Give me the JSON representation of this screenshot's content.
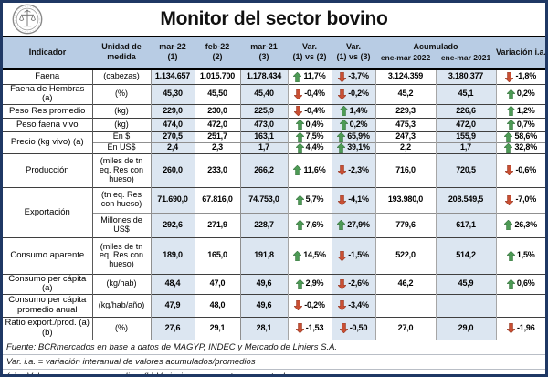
{
  "title": "Monitor del sector bovino",
  "icons": {
    "logo": "bcr-seal",
    "up_arrow": "block-arrow-up",
    "down_arrow": "block-arrow-down"
  },
  "colors": {
    "frame_border": "#1f3864",
    "header_bg": "#b8cce4",
    "stripe_bg": "#dce6f1",
    "up_arrow": "#4d9a55",
    "up_arrow_dark": "#35713c",
    "down_arrow": "#c94f33",
    "down_arrow_dark": "#8f3520"
  },
  "header": {
    "indicator": "Indicador",
    "unit": "Unidad de medida",
    "periods": [
      {
        "label": "mar-22",
        "sub": "(1)"
      },
      {
        "label": "feb-22",
        "sub": "(2)"
      },
      {
        "label": "mar-21",
        "sub": "(3)"
      }
    ],
    "variations": [
      {
        "label": "Var.",
        "sub": "(1) vs (2)"
      },
      {
        "label": "Var.",
        "sub": "(1) vs (3)"
      }
    ],
    "accumulated": {
      "label": "Acumulado",
      "subs": [
        "ene-mar 2022",
        "ene-mar 2021"
      ]
    },
    "interannual": "Variación i.a."
  },
  "rows": [
    {
      "indicator": "Faena",
      "unit": "(cabezas)",
      "values": [
        "1.134.657",
        "1.015.700",
        "1.178.434"
      ],
      "var_1_2": {
        "dir": "up",
        "value": "11,7%"
      },
      "var_1_3": {
        "dir": "down",
        "value": "-3,7%"
      },
      "acum_2022": "3.124.359",
      "acum_2021": "3.180.377",
      "var_ia": {
        "dir": "down",
        "value": "-1,8%"
      }
    },
    {
      "indicator": "Faena de Hembras (a)",
      "unit": "(%)",
      "values": [
        "45,30",
        "45,50",
        "45,40"
      ],
      "var_1_2": {
        "dir": "down",
        "value": "-0,4%"
      },
      "var_1_3": {
        "dir": "down",
        "value": "-0,2%"
      },
      "acum_2022": "45,2",
      "acum_2021": "45,1",
      "var_ia": {
        "dir": "up",
        "value": "0,2%"
      }
    },
    {
      "indicator": "Peso Res promedio",
      "unit": "(kg)",
      "values": [
        "229,0",
        "230,0",
        "225,9"
      ],
      "var_1_2": {
        "dir": "down",
        "value": "-0,4%"
      },
      "var_1_3": {
        "dir": "up",
        "value": "1,4%"
      },
      "acum_2022": "229,3",
      "acum_2021": "226,6",
      "var_ia": {
        "dir": "up",
        "value": "1,2%"
      }
    },
    {
      "indicator": "Peso faena vivo",
      "unit": "(kg)",
      "values": [
        "474,0",
        "472,0",
        "473,0"
      ],
      "var_1_2": {
        "dir": "up",
        "value": "0,4%"
      },
      "var_1_3": {
        "dir": "up",
        "value": "0,2%"
      },
      "acum_2022": "475,3",
      "acum_2021": "472,0",
      "var_ia": {
        "dir": "up",
        "value": "0,7%"
      }
    },
    {
      "indicator": "Precio (kg vivo) (a)",
      "unit": "En $",
      "values": [
        "270,5",
        "251,7",
        "163,1"
      ],
      "var_1_2": {
        "dir": "up",
        "value": "7,5%"
      },
      "var_1_3": {
        "dir": "up",
        "value": "65,9%"
      },
      "acum_2022": "247,3",
      "acum_2021": "155,9",
      "var_ia": {
        "dir": "up",
        "value": "58,6%"
      }
    },
    {
      "indicator": null,
      "unit": "En US$",
      "values": [
        "2,4",
        "2,3",
        "1,7"
      ],
      "var_1_2": {
        "dir": "up",
        "value": "4,4%"
      },
      "var_1_3": {
        "dir": "up",
        "value": "39,1%"
      },
      "acum_2022": "2,2",
      "acum_2021": "1,7",
      "var_ia": {
        "dir": "up",
        "value": "32,8%"
      }
    },
    {
      "indicator": "Producción",
      "unit": "(miles de tn eq. Res con hueso)",
      "values": [
        "260,0",
        "233,0",
        "266,2"
      ],
      "var_1_2": {
        "dir": "up",
        "value": "11,6%"
      },
      "var_1_3": {
        "dir": "down",
        "value": "-2,3%"
      },
      "acum_2022": "716,0",
      "acum_2021": "720,5",
      "var_ia": {
        "dir": "down",
        "value": "-0,6%"
      }
    },
    {
      "indicator": "Exportación",
      "unit": "(tn eq. Res con hueso)",
      "values": [
        "71.690,0",
        "67.816,0",
        "74.753,0"
      ],
      "var_1_2": {
        "dir": "up",
        "value": "5,7%"
      },
      "var_1_3": {
        "dir": "down",
        "value": "-4,1%"
      },
      "acum_2022": "193.980,0",
      "acum_2021": "208.549,5",
      "var_ia": {
        "dir": "down",
        "value": "-7,0%"
      }
    },
    {
      "indicator": null,
      "unit": "Millones de US$",
      "values": [
        "292,6",
        "271,9",
        "228,7"
      ],
      "var_1_2": {
        "dir": "up",
        "value": "7,6%"
      },
      "var_1_3": {
        "dir": "up",
        "value": "27,9%"
      },
      "acum_2022": "779,6",
      "acum_2021": "617,1",
      "var_ia": {
        "dir": "up",
        "value": "26,3%"
      }
    },
    {
      "indicator": "Consumo aparente",
      "unit": "(miles de tn eq. Res con hueso)",
      "values": [
        "189,0",
        "165,0",
        "191,8"
      ],
      "var_1_2": {
        "dir": "up",
        "value": "14,5%"
      },
      "var_1_3": {
        "dir": "down",
        "value": "-1,5%"
      },
      "acum_2022": "522,0",
      "acum_2021": "514,2",
      "var_ia": {
        "dir": "up",
        "value": "1,5%"
      }
    },
    {
      "indicator": "Consumo per cápita (a)",
      "unit": "(kg/hab)",
      "values": [
        "48,4",
        "47,0",
        "49,6"
      ],
      "var_1_2": {
        "dir": "up",
        "value": "2,9%"
      },
      "var_1_3": {
        "dir": "down",
        "value": "-2,6%"
      },
      "acum_2022": "46,2",
      "acum_2021": "45,9",
      "var_ia": {
        "dir": "up",
        "value": "0,6%"
      }
    },
    {
      "indicator": "Consumo per cápita promedio anual",
      "unit": "(kg/hab/año)",
      "values": [
        "47,9",
        "48,0",
        "49,6"
      ],
      "var_1_2": {
        "dir": "down",
        "value": "-0,2%"
      },
      "var_1_3": {
        "dir": "down",
        "value": "-3,4%"
      },
      "acum_2022": "",
      "acum_2021": "",
      "var_ia": null
    },
    {
      "indicator": "Ratio export./prod. (a)(b)",
      "unit": "(%)",
      "values": [
        "27,6",
        "29,1",
        "28,1"
      ],
      "var_1_2": {
        "dir": "down",
        "value": "-1,53"
      },
      "var_1_3": {
        "dir": "down",
        "value": "-0,50"
      },
      "acum_2022": "27,0",
      "acum_2021": "29,0",
      "var_ia": {
        "dir": "down",
        "value": "-1,96"
      }
    }
  ],
  "footnotes": [
    "Fuente: BCRmercados en base a datos de MAGYP, INDEC y Mercado de Liniers S.A.",
    "Var. i.a. = variación interanual de valores acumulados/promedios",
    "(a) = Valores ene - mar promedios. (b) Variaciones en puntos porcentuales"
  ]
}
